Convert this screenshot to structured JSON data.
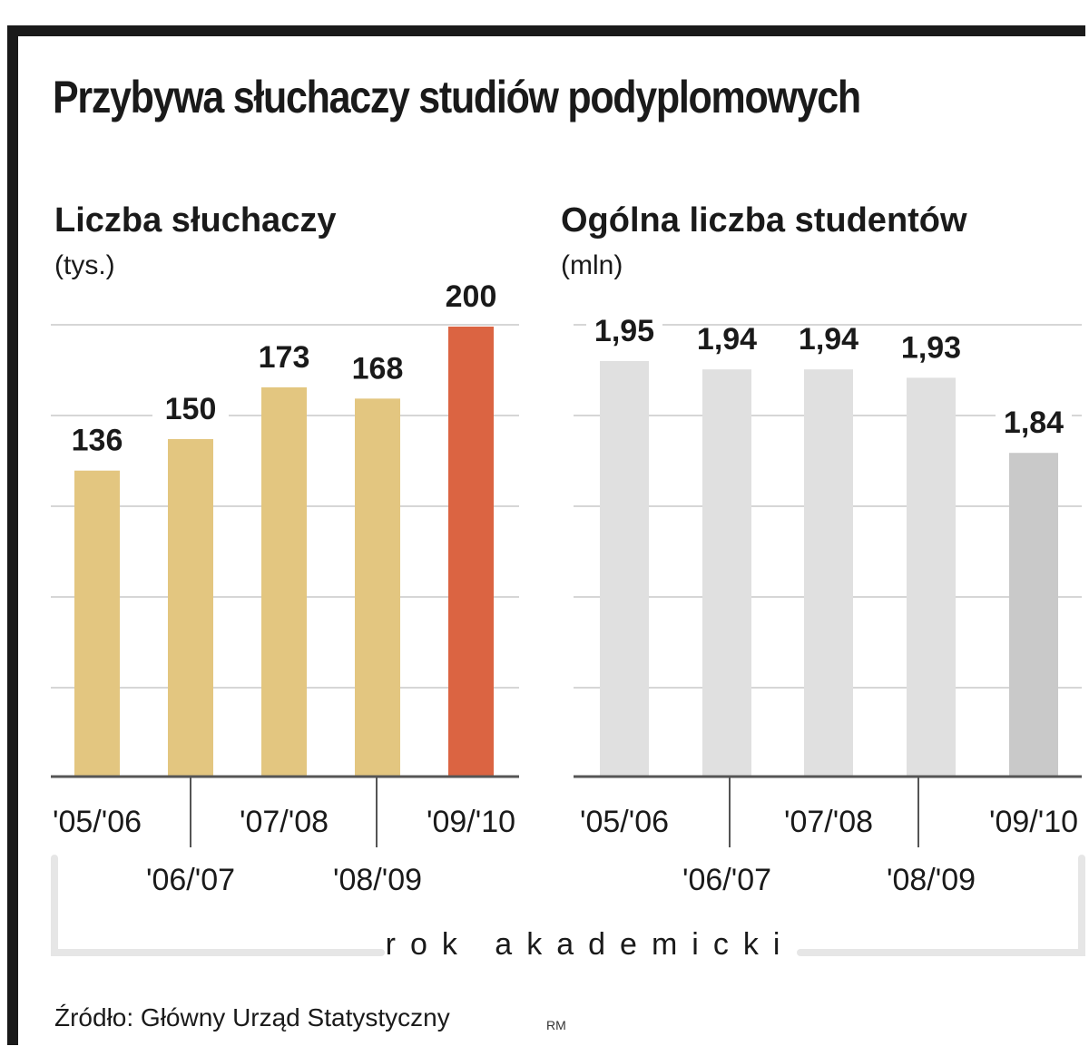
{
  "title": "Przybywa słuchaczy studiów podyplomowych",
  "axis_caption": "rok akademicki",
  "source": "Źródło: Główny Urząd Statystyczny",
  "credit": "RM",
  "colors": {
    "frame": "#1a1a1a",
    "bar_left": "#e3c680",
    "bar_left_highlight": "#db6442",
    "bar_right": "#e0e0e0",
    "bar_right_highlight": "#c9c9c9",
    "grid": "#c8c8c8",
    "axis": "#555555",
    "bracket": "#e6e6e6"
  },
  "chart_data": [
    {
      "type": "bar",
      "title": "Liczba słuchaczy",
      "unit": "(tys.)",
      "categories": [
        "'05/'06",
        "'06/'07",
        "'07/'08",
        "'08/'09",
        "'09/'10"
      ],
      "values": [
        136,
        150,
        173,
        168,
        200
      ],
      "value_labels": [
        "136",
        "150",
        "173",
        "168",
        "200"
      ],
      "highlight_index": 4,
      "ylim": [
        0,
        250
      ],
      "grid": true
    },
    {
      "type": "bar",
      "title": "Ogólna liczba studentów",
      "unit": "(mln)",
      "categories": [
        "'05/'06",
        "'06/'07",
        "'07/'08",
        "'08/'09",
        "'09/'10"
      ],
      "values": [
        1.95,
        1.94,
        1.94,
        1.93,
        1.84
      ],
      "value_labels": [
        "1,95",
        "1,94",
        "1,94",
        "1,93",
        "1,84"
      ],
      "highlight_index": 4,
      "grid": true
    }
  ]
}
